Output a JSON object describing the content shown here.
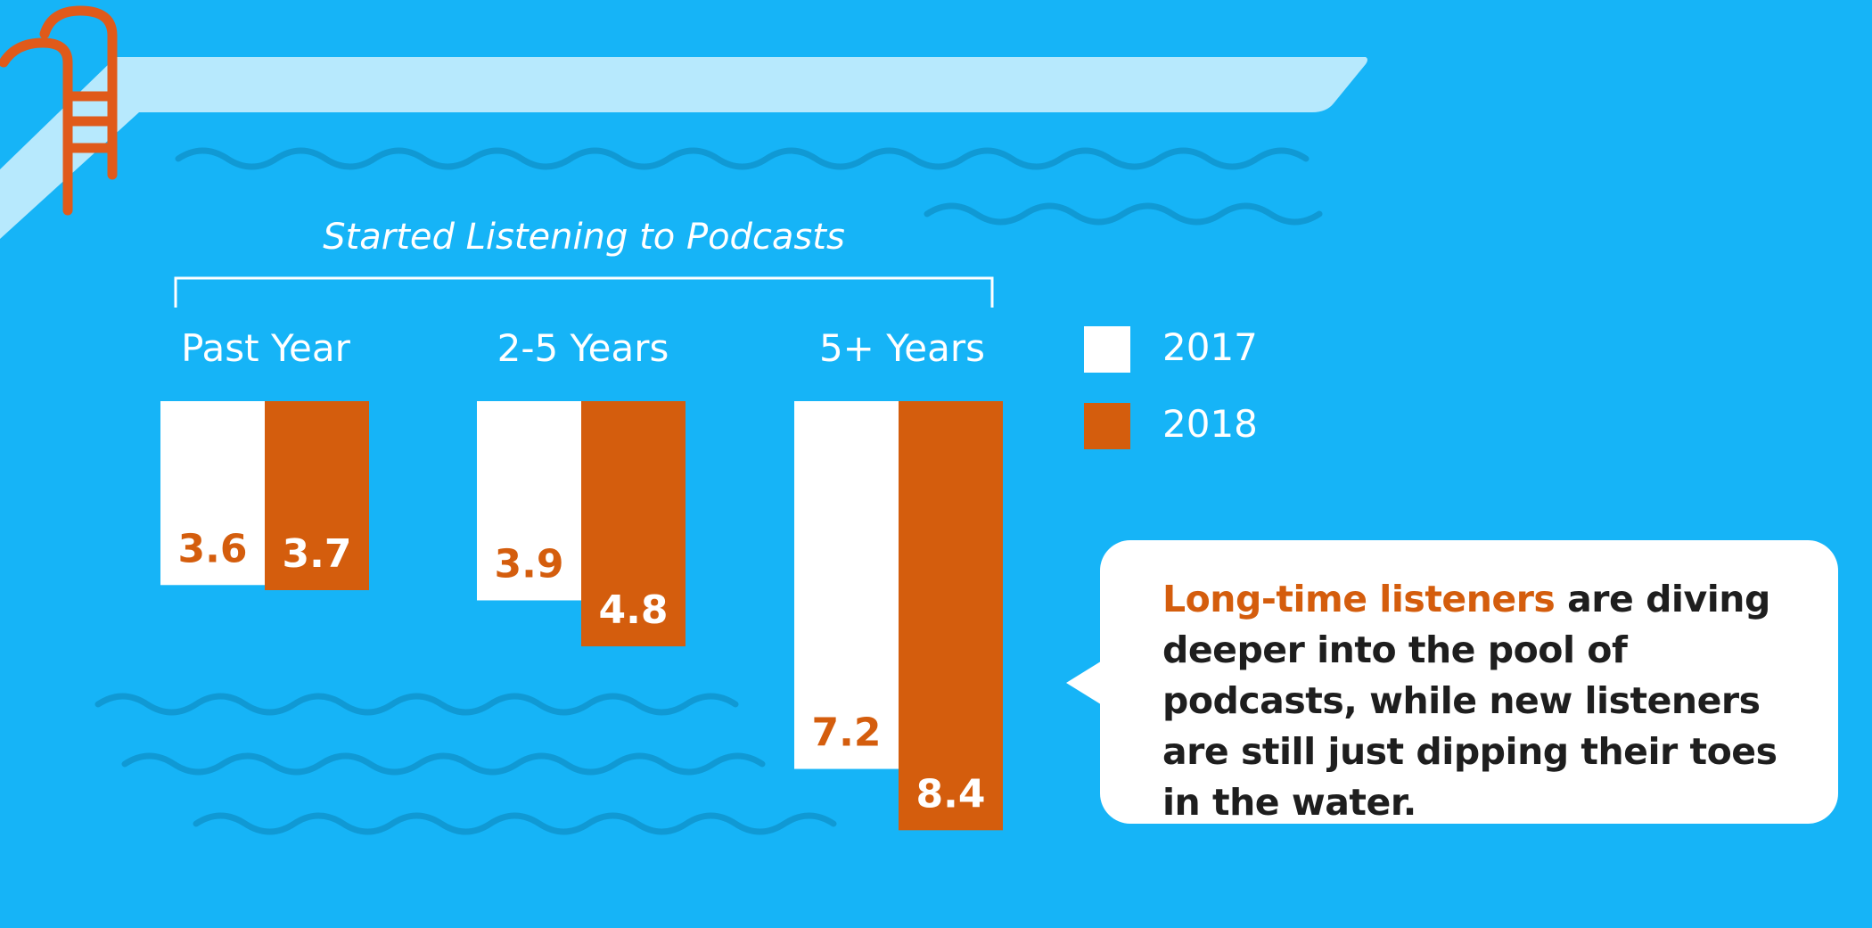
{
  "chart_data": {
    "type": "bar",
    "group_title": "Started Listening to Podcasts",
    "categories": [
      "Past Year",
      "2-5 Years",
      "5+ Years"
    ],
    "series": [
      {
        "name": "2017",
        "values": [
          3.6,
          3.9,
          7.2
        ]
      },
      {
        "name": "2018",
        "values": [
          3.7,
          4.8,
          8.4
        ]
      }
    ],
    "data_labels": {
      "2017": [
        "3.6",
        "3.9",
        "7.2"
      ],
      "2018": [
        "3.7",
        "4.8",
        "8.4"
      ]
    },
    "legend": {
      "items": [
        "2017",
        "2018"
      ],
      "position": "right"
    },
    "ylim": [
      0,
      8.4
    ],
    "grid": false,
    "colors": {
      "2017": "#ffffff",
      "2018": "#d45d0d"
    }
  },
  "callout": {
    "highlight": "Long-time listeners",
    "body": " are diving deeper into the pool of podcasts, while new listeners are still just dipping their toes in the water."
  },
  "colors": {
    "background": "#16b4f7",
    "accent": "#d45d0d",
    "bar_2017": "#ffffff",
    "bar_2018": "#d45d0d",
    "wave": "#0f90c8",
    "board": "#b7e9fd",
    "ladder": "#e05a1a"
  }
}
